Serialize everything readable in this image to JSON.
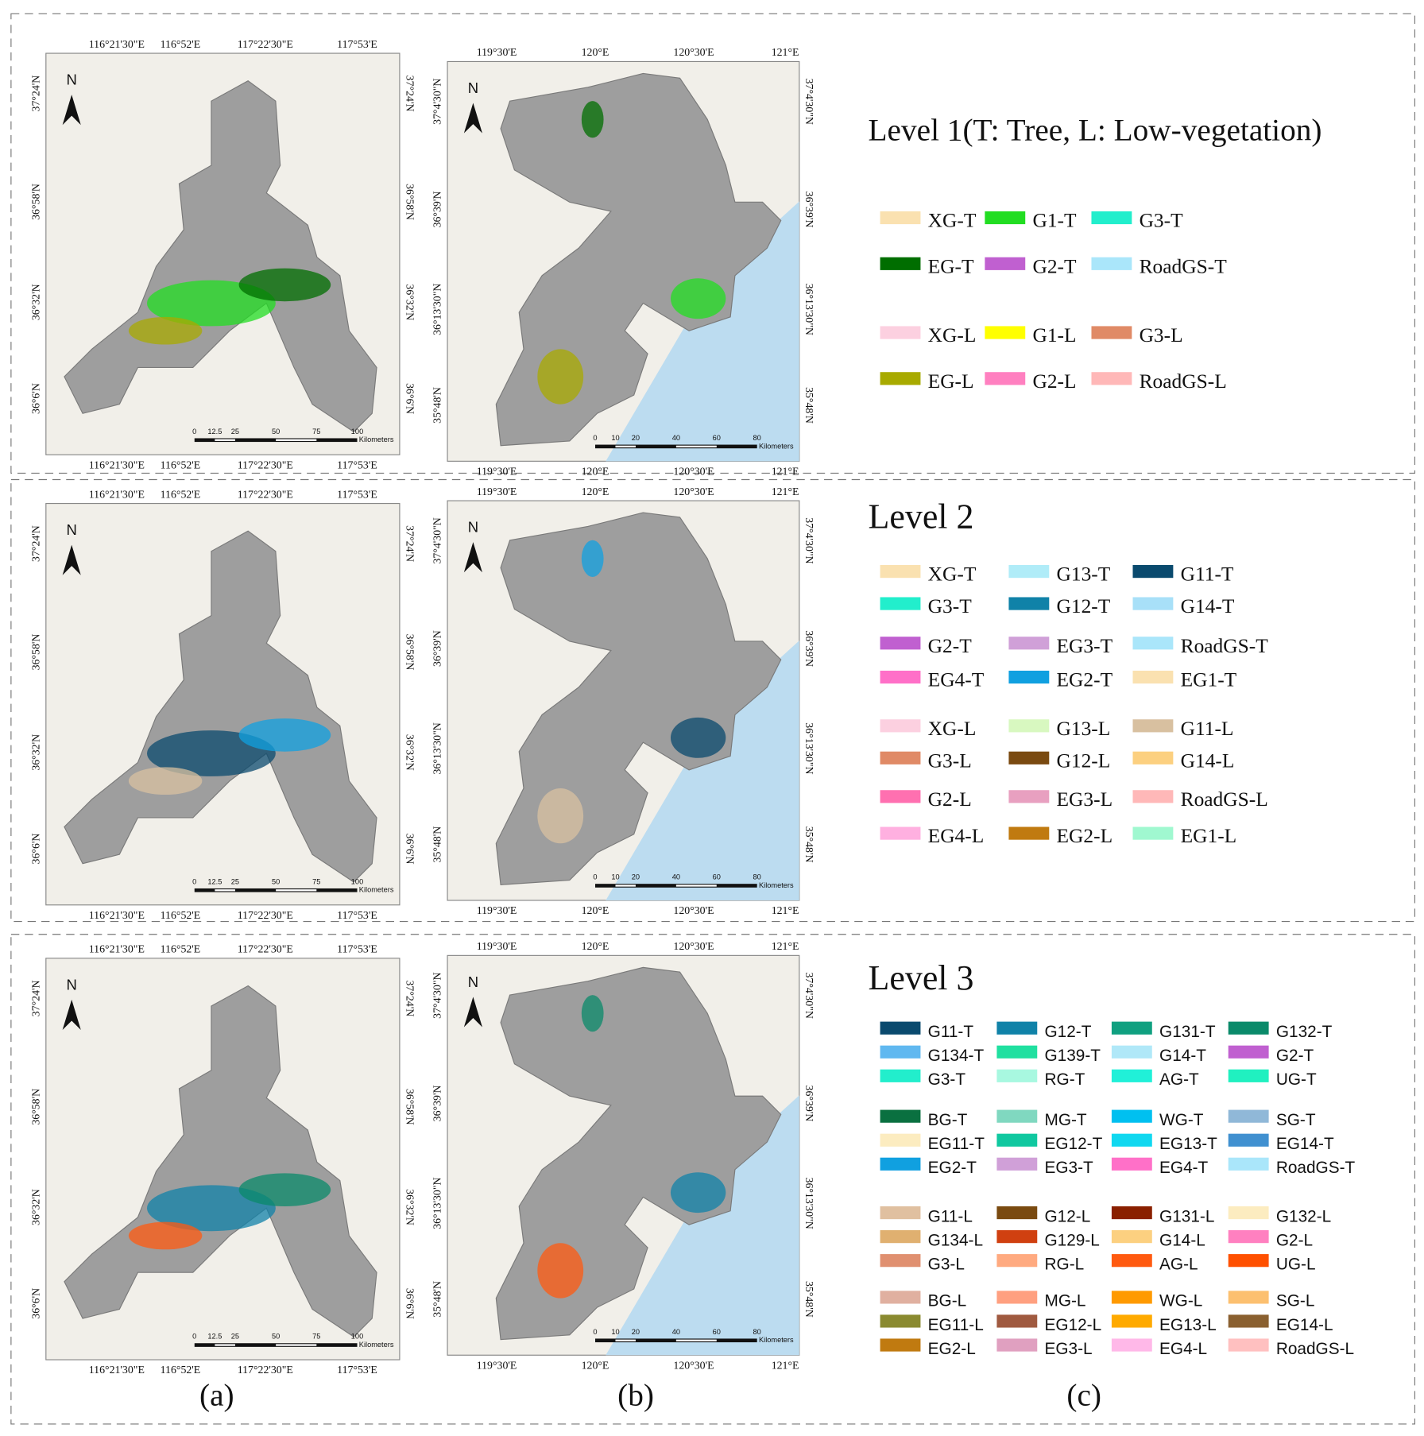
{
  "map_a": {
    "north": "N",
    "top_ticks": [
      "116°21'30\"E",
      "116°52'E",
      "117°22'30\"E",
      "117°53'E"
    ],
    "left_ticks": [
      "37°24'N",
      "36°58'N",
      "36°32'N",
      "36°6'N"
    ],
    "scale_labels": [
      "0",
      "12.5",
      "25",
      "50",
      "75",
      "100"
    ],
    "scale_unit": "Kilometers"
  },
  "map_b": {
    "north": "N",
    "top_ticks": [
      "119°30'E",
      "120°E",
      "120°30'E",
      "121°E"
    ],
    "left_ticks": [
      "37°4'30\"N",
      "36°39'N",
      "36°13'30\"N",
      "35°48'N"
    ],
    "scale_labels": [
      "0",
      "10",
      "20",
      "40",
      "60",
      "80"
    ],
    "scale_unit": "Kilometers"
  },
  "panel_labels": [
    "(a)",
    "(b)",
    "(c)"
  ],
  "rows": [
    {
      "title": "Level 1(T: Tree, L: Low-vegetation)",
      "groups": [
        [
          {
            "label": "XG-T",
            "color": "#fae1b0"
          },
          {
            "label": "G1-T",
            "color": "#22dd22"
          },
          {
            "label": "G3-T",
            "color": "#22eecc"
          },
          {
            "label": "EG-T",
            "color": "#006e00"
          },
          {
            "label": "G2-T",
            "color": "#c060d0"
          },
          {
            "label": "RoadGS-T",
            "color": "#aae6fa"
          }
        ],
        [
          {
            "label": "XG-L",
            "color": "#fcd0e0"
          },
          {
            "label": "G1-L",
            "color": "#ffff00"
          },
          {
            "label": "G3-L",
            "color": "#e08a66"
          },
          {
            "label": "EG-L",
            "color": "#a8aa00"
          },
          {
            "label": "G2-L",
            "color": "#ff80c0"
          },
          {
            "label": "RoadGS-L",
            "color": "#ffb8b8"
          }
        ]
      ]
    },
    {
      "title": "Level 2",
      "groups": [
        [
          {
            "label": "XG-T",
            "color": "#fae1b0"
          },
          {
            "label": "G13-T",
            "color": "#b0ecf8"
          },
          {
            "label": "G11-T",
            "color": "#0a4a6e"
          },
          {
            "label": "G3-T",
            "color": "#22eecc"
          },
          {
            "label": "G12-T",
            "color": "#1082a8"
          },
          {
            "label": "G14-T",
            "color": "#a8e0f8"
          },
          {
            "label": "G2-T",
            "color": "#c060d0"
          },
          {
            "label": "EG3-T",
            "color": "#d0a0d8"
          },
          {
            "label": "RoadGS-T",
            "color": "#aae6fa"
          },
          {
            "label": "EG4-T",
            "color": "#ff70c8"
          },
          {
            "label": "EG2-T",
            "color": "#10a0e0"
          },
          {
            "label": "EG1-T",
            "color": "#fae1b0"
          }
        ],
        [
          {
            "label": "XG-L",
            "color": "#fcd0e0"
          },
          {
            "label": "G13-L",
            "color": "#d8f8c0"
          },
          {
            "label": "G11-L",
            "color": "#d8c0a0"
          },
          {
            "label": "G3-L",
            "color": "#e08a66"
          },
          {
            "label": "G12-L",
            "color": "#7a4a10"
          },
          {
            "label": "G14-L",
            "color": "#fcd080"
          },
          {
            "label": "G2-L",
            "color": "#ff70b0"
          },
          {
            "label": "EG3-L",
            "color": "#e8a0c0"
          },
          {
            "label": "RoadGS-L",
            "color": "#ffb8b8"
          },
          {
            "label": "EG4-L",
            "color": "#ffb0e0"
          },
          {
            "label": "EG2-L",
            "color": "#c07a10"
          },
          {
            "label": "EG1-L",
            "color": "#a0f8d0"
          }
        ]
      ]
    },
    {
      "title": "Level 3",
      "groups": [
        [
          {
            "label": "G11-T",
            "color": "#0a4a6e"
          },
          {
            "label": "G12-T",
            "color": "#1082a8"
          },
          {
            "label": "G131-T",
            "color": "#10a080"
          },
          {
            "label": "G132-T",
            "color": "#0a8a6a"
          },
          {
            "label": "G134-T",
            "color": "#60b8f0"
          },
          {
            "label": "G139-T",
            "color": "#20e0a0"
          },
          {
            "label": "G14-T",
            "color": "#b0e8f8"
          },
          {
            "label": "G2-T",
            "color": "#c060d0"
          },
          {
            "label": "G3-T",
            "color": "#22eecc"
          },
          {
            "label": "RG-T",
            "color": "#a8f8e0"
          },
          {
            "label": "AG-T",
            "color": "#20f0d8"
          },
          {
            "label": "UG-T",
            "color": "#20f0c0"
          }
        ],
        [
          {
            "label": "BG-T",
            "color": "#0a7040"
          },
          {
            "label": "MG-T",
            "color": "#80d8c0"
          },
          {
            "label": "WG-T",
            "color": "#00c0f0"
          },
          {
            "label": "SG-T",
            "color": "#90b8d8"
          },
          {
            "label": "EG11-T",
            "color": "#fcecc0"
          },
          {
            "label": "EG12-T",
            "color": "#10c8a0"
          },
          {
            "label": "EG13-T",
            "color": "#10d8f0"
          },
          {
            "label": "EG14-T",
            "color": "#4090d0"
          },
          {
            "label": "EG2-T",
            "color": "#10a0e0"
          },
          {
            "label": "EG3-T",
            "color": "#d0a0d8"
          },
          {
            "label": "EG4-T",
            "color": "#ff70c8"
          },
          {
            "label": "RoadGS-T",
            "color": "#aae6fa"
          }
        ],
        [
          {
            "label": "G11-L",
            "color": "#e0c0a0"
          },
          {
            "label": "G12-L",
            "color": "#7a4a10"
          },
          {
            "label": "G131-L",
            "color": "#8a2000"
          },
          {
            "label": "G132-L",
            "color": "#fcecc0"
          },
          {
            "label": "G134-L",
            "color": "#e0b070"
          },
          {
            "label": "G129-L",
            "color": "#d04010"
          },
          {
            "label": "G14-L",
            "color": "#fcd080"
          },
          {
            "label": "G2-L",
            "color": "#ff80c0"
          },
          {
            "label": "G3-L",
            "color": "#e09070"
          },
          {
            "label": "RG-L",
            "color": "#ffaa80"
          },
          {
            "label": "AG-L",
            "color": "#ff5a10"
          },
          {
            "label": "UG-L",
            "color": "#ff5000"
          }
        ],
        [
          {
            "label": "BG-L",
            "color": "#e0b0a0"
          },
          {
            "label": "MG-L",
            "color": "#ffa080"
          },
          {
            "label": "WG-L",
            "color": "#ff9a00"
          },
          {
            "label": "SG-L",
            "color": "#fcc070"
          },
          {
            "label": "EG11-L",
            "color": "#8a8a30"
          },
          {
            "label": "EG12-L",
            "color": "#a05a40"
          },
          {
            "label": "EG13-L",
            "color": "#ffaa00"
          },
          {
            "label": "EG14-L",
            "color": "#8a6030"
          },
          {
            "label": "EG2-L",
            "color": "#c07a10"
          },
          {
            "label": "EG3-L",
            "color": "#e0a0c0"
          },
          {
            "label": "EG4-L",
            "color": "#ffb8e8"
          },
          {
            "label": "RoadGS-L",
            "color": "#ffc0c0"
          }
        ]
      ]
    }
  ]
}
